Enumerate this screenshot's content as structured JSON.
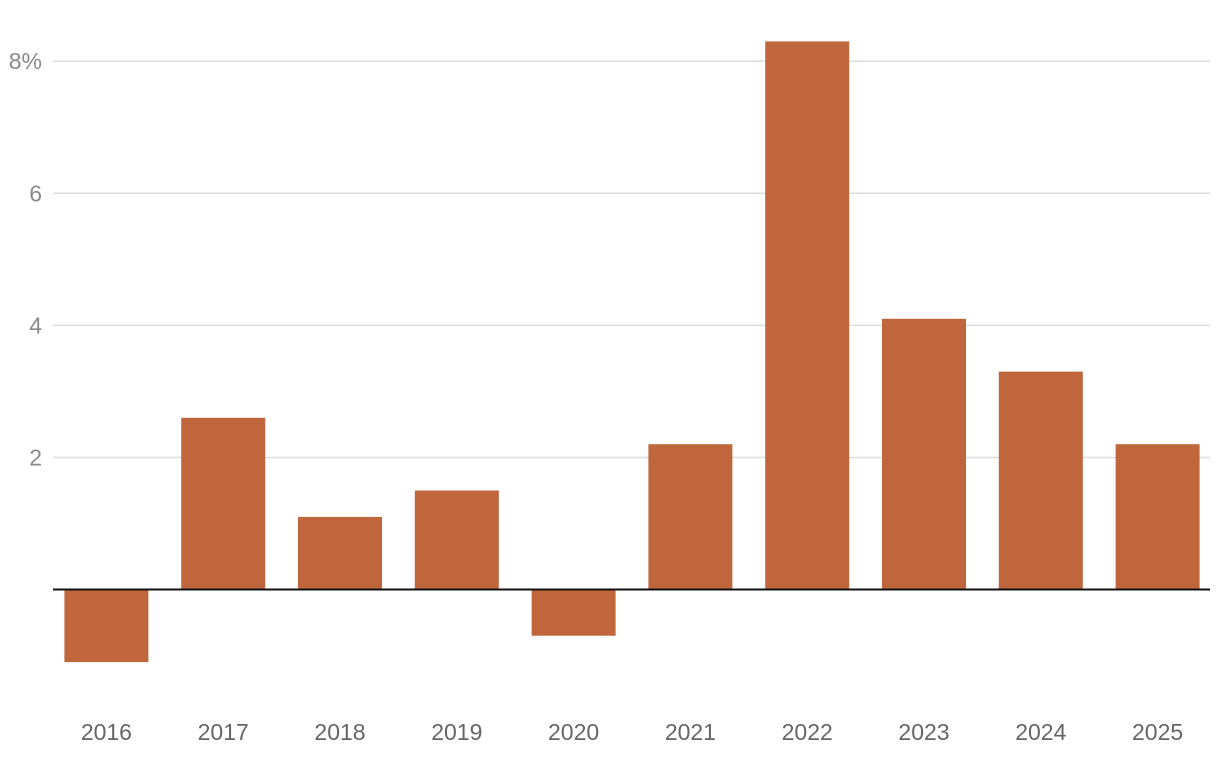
{
  "chart_data": {
    "type": "bar",
    "categories": [
      "2016",
      "2017",
      "2018",
      "2019",
      "2020",
      "2021",
      "2022",
      "2023",
      "2024",
      "2025"
    ],
    "values": [
      -1.1,
      2.6,
      1.1,
      1.5,
      -0.7,
      2.2,
      8.3,
      4.1,
      3.3,
      2.2
    ],
    "ylim": [
      -1.9,
      8.7
    ],
    "y_ticks": [
      2,
      4,
      6,
      8
    ],
    "y_tick_labels": [
      "2",
      "4",
      "6",
      "8%"
    ],
    "grid": true,
    "legend": "none",
    "bar_color": "#bf663d",
    "zero_line_color": "#111111",
    "title": "",
    "xlabel": "",
    "ylabel": ""
  }
}
